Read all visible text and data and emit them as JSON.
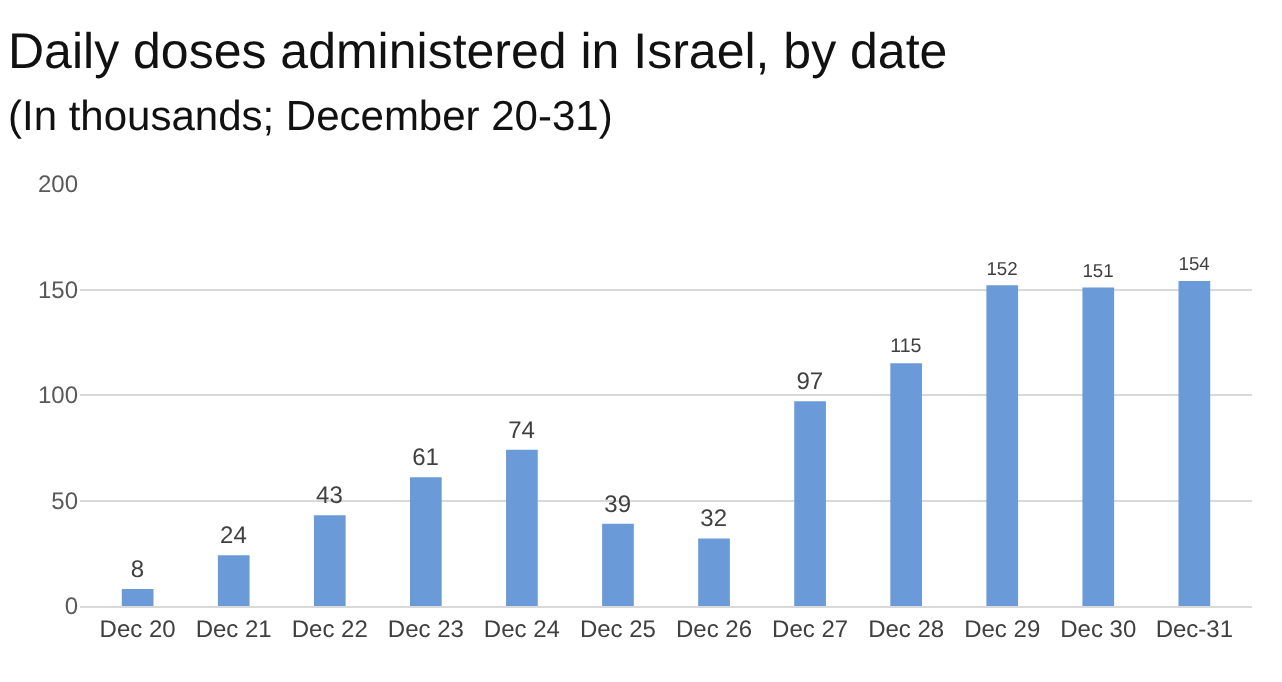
{
  "chart_data": {
    "type": "bar",
    "title": "Daily doses administered in Israel, by date",
    "subtitle": "(In thousands; December 20-31)",
    "categories": [
      "Dec 20",
      "Dec 21",
      "Dec 22",
      "Dec 23",
      "Dec 24",
      "Dec 25",
      "Dec 26",
      "Dec 27",
      "Dec 28",
      "Dec 29",
      "Dec 30",
      "Dec-31"
    ],
    "values": [
      8,
      24,
      43,
      61,
      74,
      39,
      32,
      97,
      115,
      152,
      151,
      154
    ],
    "color": "#6a9bd8",
    "ylim": [
      0,
      200
    ],
    "yticks": [
      0,
      50,
      100,
      150,
      200
    ],
    "grid": "y",
    "data_labels": true
  }
}
